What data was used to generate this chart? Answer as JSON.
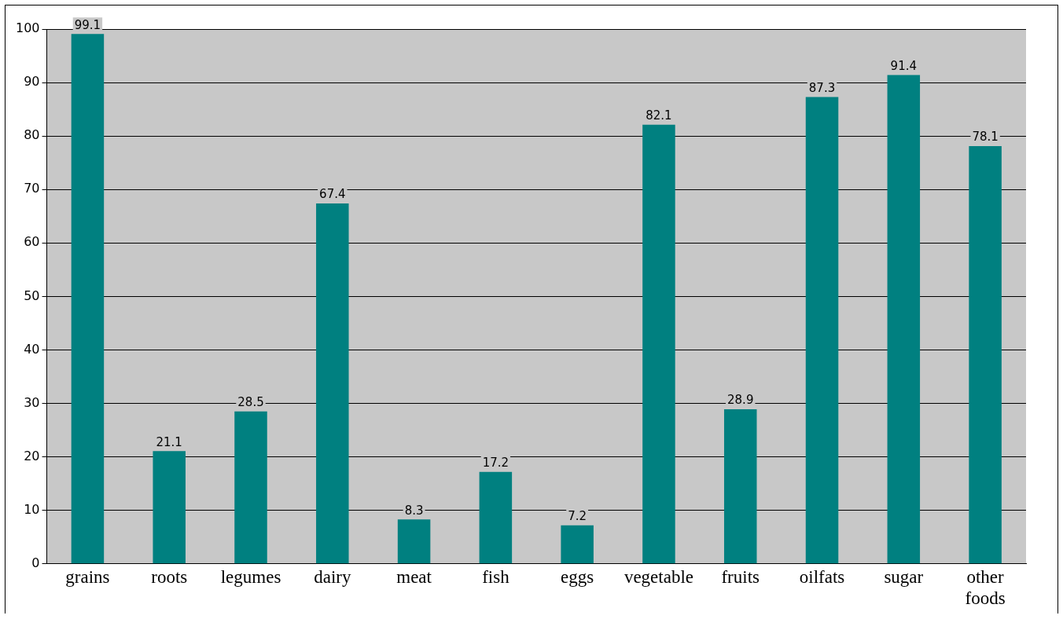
{
  "chart_data": {
    "type": "bar",
    "categories": [
      "grains",
      "roots",
      "legumes",
      "dairy",
      "meat",
      "fish",
      "eggs",
      "vegetable",
      "fruits",
      "oilfats",
      "sugar",
      "other foods"
    ],
    "values": [
      99.1,
      21.1,
      28.5,
      67.4,
      8.3,
      17.2,
      7.2,
      82.1,
      28.9,
      87.3,
      91.4,
      78.1
    ],
    "color": "#008080",
    "ylim": [
      0,
      100
    ],
    "yticks": [
      0,
      10,
      20,
      30,
      40,
      50,
      60,
      70,
      80,
      90,
      100
    ],
    "grid": "y",
    "data_labels": true,
    "legend": false
  }
}
